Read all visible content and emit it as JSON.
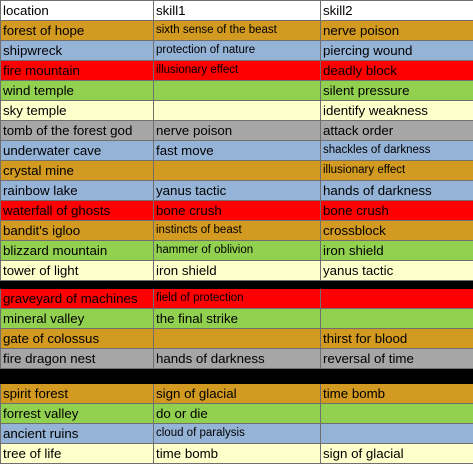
{
  "colors": {
    "orange": "#d29a20",
    "blue": "#95b3d7",
    "red": "#ff0000",
    "green": "#92d050",
    "cream": "#ffffcc",
    "gray": "#a6a6a6",
    "white": "#ffffff",
    "black": "#000000"
  },
  "table": {
    "headers": [
      "location",
      "skill1",
      "skill2"
    ],
    "rows": [
      {
        "color": "orange",
        "cells": [
          "forest of hope",
          "sixth sense of the beast",
          "nerve poison"
        ]
      },
      {
        "color": "blue",
        "cells": [
          "shipwreck",
          "protection of nature",
          "piercing wound"
        ]
      },
      {
        "color": "red",
        "cells": [
          "fire mountain",
          "illusionary effect",
          "deadly block"
        ]
      },
      {
        "color": "green",
        "cells": [
          "wind temple",
          "",
          "silent pressure"
        ]
      },
      {
        "color": "cream",
        "cells": [
          "sky temple",
          "",
          "identify weakness"
        ]
      },
      {
        "color": "gray",
        "cells": [
          "tomb of the forest god",
          "nerve poison",
          "attack order"
        ]
      },
      {
        "color": "blue",
        "cells": [
          "underwater cave",
          "fast move",
          "shackles of darkness"
        ]
      },
      {
        "color": "orange",
        "cells": [
          "crystal mine",
          "",
          "illusionary effect"
        ]
      },
      {
        "color": "blue",
        "cells": [
          "rainbow lake",
          "yanus tactic",
          "hands of darkness"
        ]
      },
      {
        "color": "red",
        "cells": [
          "waterfall of ghosts",
          "bone crush",
          "bone crush"
        ]
      },
      {
        "color": "orange",
        "cells": [
          "bandit's igloo",
          "instincts of beast",
          "crossblock"
        ]
      },
      {
        "color": "green",
        "cells": [
          "blizzard mountain",
          "hammer of oblivion",
          "iron shield"
        ]
      },
      {
        "color": "cream",
        "cells": [
          "tower of light",
          "iron shield",
          "yanus tactic"
        ]
      },
      {
        "separator": true
      },
      {
        "color": "red",
        "cells": [
          "graveyard of machines",
          "field of protection",
          ""
        ]
      },
      {
        "color": "green",
        "cells": [
          "mineral valley",
          "the final strike",
          ""
        ]
      },
      {
        "color": "orange",
        "cells": [
          "gate of colossus",
          "",
          "thirst for blood"
        ]
      },
      {
        "color": "gray",
        "cells": [
          "fire dragon nest",
          "hands of darkness",
          "reversal of time"
        ]
      },
      {
        "separator": true,
        "tall": true
      },
      {
        "color": "orange",
        "cells": [
          "spirit forest",
          "sign of glacial",
          "time bomb"
        ]
      },
      {
        "color": "green",
        "cells": [
          "forrest valley",
          "do or die",
          ""
        ]
      },
      {
        "color": "blue",
        "cells": [
          "ancient ruins",
          "cloud of paralysis",
          ""
        ]
      },
      {
        "color": "cream",
        "cells": [
          "tree of life",
          "time bomb",
          "sign of glacial"
        ]
      }
    ]
  }
}
